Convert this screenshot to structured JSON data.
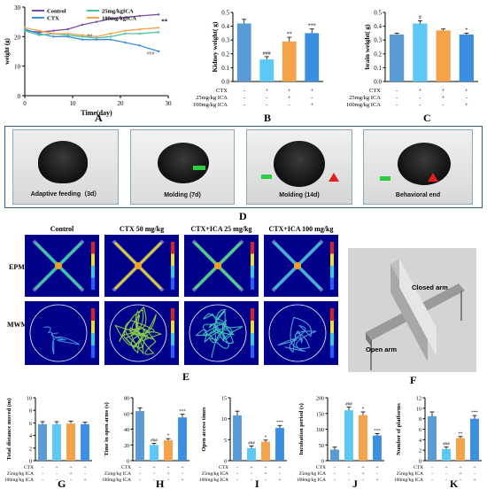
{
  "panel_letters": {
    "A": "A",
    "B": "B",
    "C": "C",
    "D": "D",
    "E": "E",
    "F": "F",
    "G": "G",
    "H": "H",
    "I": "I",
    "J": "J",
    "K": "K"
  },
  "treatment_rows": {
    "ctx": "CTX",
    "ica25": "25mg/kg ICA",
    "ica100": "100mg/kg ICA"
  },
  "treatment_signs": {
    "ctx": [
      "-",
      "+",
      "+",
      "+"
    ],
    "ica25": [
      "-",
      "-",
      "+",
      "-"
    ],
    "ica100": [
      "-",
      "-",
      "-",
      "+"
    ]
  },
  "colors": {
    "control": "#5b9bd5",
    "ctx": "#5bc8f5",
    "ica25": "#f5a34a",
    "ica100": "#3b8fe0",
    "purple": "#7b4ca0",
    "photo_border": "#2b5f8a"
  },
  "photos": [
    {
      "caption": "Adaptive feeding（3d）"
    },
    {
      "caption": "Molding (7d)"
    },
    {
      "caption": "Molding (14d)"
    },
    {
      "caption": "Behavioral end"
    }
  ],
  "heatmap": {
    "columns": [
      "Control",
      "CTX 50 mg/kg",
      "CTX+ICA 25 mg/kg",
      "CTX+ICA 100 mg/kg"
    ],
    "rows": [
      "EPM",
      "MWM"
    ]
  },
  "maze3d": {
    "closed_arm": "Closed arm",
    "open_arm": "Open arm"
  },
  "chart_data": [
    {
      "panel": "A",
      "type": "line",
      "xlabel": "Time(day)",
      "ylabel": "weight (g)",
      "xlim": [
        0,
        30
      ],
      "ylim": [
        0,
        30
      ],
      "xticks": [
        0,
        10,
        20,
        30
      ],
      "yticks": [
        0,
        10,
        20,
        30
      ],
      "series": [
        {
          "name": "Control",
          "color": "#7b4ca0",
          "x": [
            0,
            3,
            6,
            9,
            12,
            15,
            18,
            21,
            24,
            28
          ],
          "values": [
            22,
            21.5,
            22,
            22.5,
            24,
            25,
            26,
            26.5,
            27,
            27.5
          ]
        },
        {
          "name": "CTX",
          "color": "#3b8fe0",
          "x": [
            0,
            3,
            6,
            9,
            12,
            15,
            18,
            21,
            24,
            28
          ],
          "values": [
            22.5,
            21,
            20,
            20,
            19,
            19,
            19,
            18,
            17,
            15
          ]
        },
        {
          "name": "25mg/kgICA",
          "color": "#4fc3a1",
          "x": [
            0,
            3,
            6,
            9,
            12,
            15,
            18,
            21,
            24,
            28
          ],
          "values": [
            22,
            20.5,
            21,
            20.5,
            20,
            19.5,
            20,
            21,
            21,
            21.5
          ]
        },
        {
          "name": "100mg/kgICA",
          "color": "#f5a34a",
          "x": [
            0,
            3,
            6,
            9,
            12,
            15,
            18,
            21,
            24,
            28
          ],
          "values": [
            23,
            22,
            21,
            21,
            20.5,
            20,
            21,
            22,
            22.5,
            23
          ]
        }
      ],
      "annotations": [
        "**",
        "##",
        "###"
      ]
    },
    {
      "panel": "B",
      "type": "bar",
      "ylabel": "Kidney weight( g)",
      "ylim": [
        0,
        0.5
      ],
      "yticks": [
        "0.0",
        "0.1",
        "0.2",
        "0.3",
        "0.4",
        "0.5"
      ],
      "values": [
        0.42,
        0.16,
        0.29,
        0.35
      ],
      "errors": [
        0.03,
        0.02,
        0.03,
        0.03
      ],
      "labels": [
        "",
        "###",
        "**",
        "***"
      ]
    },
    {
      "panel": "C",
      "type": "bar",
      "ylabel": "brain weight( g)",
      "ylim": [
        0,
        0.5
      ],
      "yticks": [
        "0.0",
        "0.1",
        "0.2",
        "0.3",
        "0.4",
        "0.5"
      ],
      "values": [
        0.34,
        0.42,
        0.37,
        0.34
      ],
      "errors": [
        0.01,
        0.02,
        0.01,
        0.01
      ],
      "labels": [
        "",
        "#",
        "",
        "*"
      ]
    },
    {
      "panel": "G",
      "type": "bar",
      "ylabel": "Total distance moved (m)",
      "ylim": [
        0,
        10
      ],
      "yticks": [
        "0",
        "2",
        "4",
        "6",
        "8",
        "10"
      ],
      "values": [
        5.8,
        5.8,
        5.9,
        5.8
      ],
      "errors": [
        0.4,
        0.4,
        0.4,
        0.3
      ],
      "labels": [
        "",
        "",
        "",
        ""
      ]
    },
    {
      "panel": "H",
      "type": "bar",
      "ylabel": "Time in open arms (s)",
      "ylim": [
        0,
        80
      ],
      "yticks": [
        "0",
        "20",
        "40",
        "60",
        "80"
      ],
      "values": [
        63,
        20,
        26,
        55
      ],
      "errors": [
        4,
        2,
        2,
        4
      ],
      "labels": [
        "",
        "###",
        "*",
        "***"
      ]
    },
    {
      "panel": "I",
      "type": "bar",
      "ylabel": "Open access times",
      "ylim": [
        0,
        15
      ],
      "yticks": [
        "0",
        "5",
        "10",
        "15"
      ],
      "values": [
        10.8,
        3,
        4.5,
        7.8
      ],
      "errors": [
        1,
        0.5,
        0.4,
        0.6
      ],
      "labels": [
        "",
        "###",
        "*",
        "***"
      ]
    },
    {
      "panel": "J",
      "type": "bar",
      "ylabel": "Incubation period (s)",
      "ylim": [
        0,
        200
      ],
      "yticks": [
        "0",
        "50",
        "100",
        "150",
        "200"
      ],
      "values": [
        35,
        160,
        145,
        80
      ],
      "errors": [
        8,
        10,
        10,
        6
      ],
      "labels": [
        "",
        "###",
        "*",
        "***"
      ]
    },
    {
      "panel": "K",
      "type": "bar",
      "ylabel": "Number of platforms",
      "ylim": [
        0,
        12
      ],
      "yticks": [
        "0",
        "2",
        "4",
        "6",
        "8",
        "10",
        "12"
      ],
      "values": [
        8.5,
        2.2,
        4.3,
        8
      ],
      "errors": [
        0.8,
        0.4,
        0.3,
        0.6
      ],
      "labels": [
        "",
        "###",
        "**",
        "***"
      ]
    }
  ]
}
